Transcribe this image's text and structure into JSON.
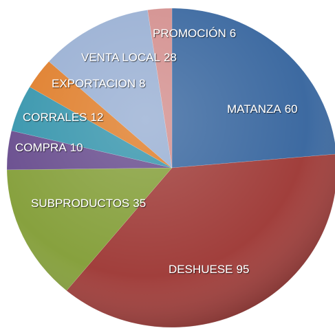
{
  "chart_data": {
    "type": "pie",
    "categories": [
      "MATANZA",
      "DESHUESE",
      "SUBPRODUCTOS",
      "COMPRA",
      "CORRALES",
      "EXPORTACION",
      "VENTA LOCAL",
      "PROMOCIÓN"
    ],
    "values": [
      60,
      95,
      35,
      10,
      12,
      8,
      28,
      6
    ],
    "colors": [
      "#3d6aa1",
      "#a13f3c",
      "#87a13e",
      "#6b5090",
      "#3a97ae",
      "#e0802e",
      "#9bb1d4",
      "#d49190"
    ]
  }
}
